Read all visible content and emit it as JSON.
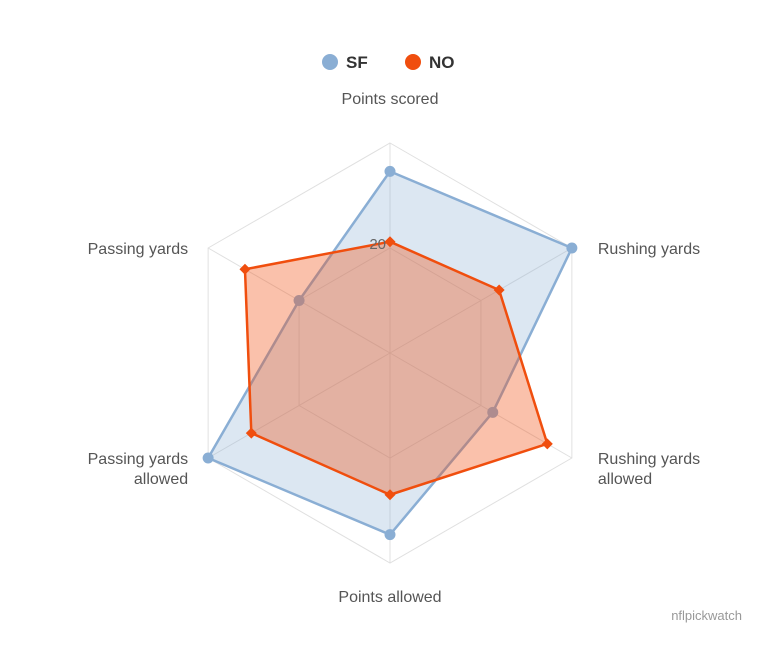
{
  "chart_data": {
    "type": "radar",
    "categories": [
      "Points scored",
      "Rushing yards",
      "Rushing yards allowed",
      "Points allowed",
      "Passing yards allowed",
      "Passing yards"
    ],
    "category_lines": [
      [
        "Points scored"
      ],
      [
        "Rushing yards"
      ],
      [
        "Rushing yards",
        "allowed"
      ],
      [
        "Points allowed"
      ],
      [
        "Passing yards",
        "allowed"
      ],
      [
        "Passing yards"
      ]
    ],
    "series": [
      {
        "name": "SF",
        "values": [
          34.6,
          40.0,
          22.6,
          34.6,
          40.0,
          20.0
        ],
        "color": "#8aaed4",
        "marker": "circle"
      },
      {
        "name": "NO",
        "values": [
          21.2,
          24.0,
          34.6,
          27.0,
          30.5,
          31.9
        ],
        "color": "#f04e0e",
        "marker": "diamond"
      }
    ],
    "rlim": [
      0,
      40
    ],
    "ticks": [
      {
        "value": 20,
        "label": "20"
      }
    ],
    "grid": true,
    "legend_position": "top-center",
    "credit": "nflpickwatch"
  }
}
